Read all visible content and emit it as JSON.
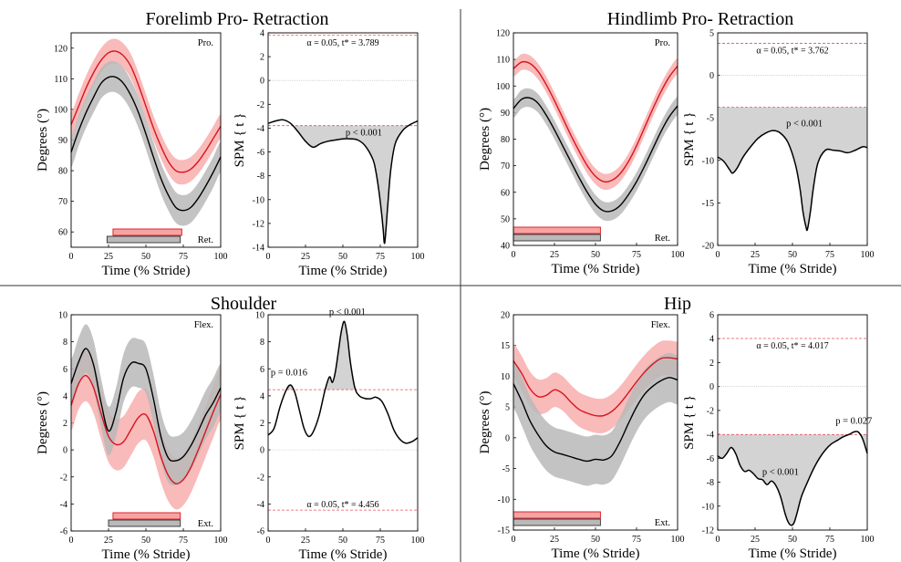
{
  "figure": {
    "panels": [
      "forelimb",
      "hindlimb",
      "shoulder",
      "hip"
    ]
  },
  "chart_data": [
    {
      "id": "forelimb",
      "title": "Forelimb Pro- Retraction",
      "colors": {
        "red_mean": "#d9141d",
        "red_band": "#f7a3a3",
        "black_mean": "#000000",
        "grey_band": "#b9b9b9",
        "spm_fill": "#d3d3d3",
        "threshold": "#e8505a"
      },
      "left": {
        "type": "line",
        "xlabel": "Time (% Stride)",
        "ylabel": "Degrees (°)",
        "xlim": [
          0,
          100
        ],
        "ylim": [
          55,
          125
        ],
        "xticks": [
          0,
          25,
          50,
          75,
          100
        ],
        "yticks": [
          60,
          70,
          80,
          90,
          100,
          110,
          120
        ],
        "top_label": "Pro.",
        "bottom_label": "Ret.",
        "x": [
          0,
          5,
          10,
          15,
          20,
          25,
          30,
          35,
          40,
          45,
          50,
          55,
          60,
          65,
          70,
          75,
          80,
          85,
          90,
          95,
          100
        ],
        "series": [
          {
            "color": "red",
            "mean": [
              95,
              101,
              107,
              112,
              116,
              118.5,
              119,
              117.5,
              114,
              108,
              101,
              94,
              88,
              83,
              80,
              79.5,
              80.5,
              83,
              86.5,
              90.5,
              94.5
            ],
            "half_width": 4
          },
          {
            "color": "black",
            "mean": [
              86,
              93,
              99,
              104,
              108.5,
              110.5,
              110.5,
              108.5,
              104.5,
              99,
              92,
              84.5,
              77.5,
              72,
              68,
              67,
              68,
              71,
              75,
              79.5,
              84.5
            ],
            "half_width": 5
          }
        ],
        "bars": [
          {
            "color": "red",
            "start": 28,
            "end": 74
          },
          {
            "color": "grey",
            "start": 24,
            "end": 73
          }
        ]
      },
      "right": {
        "type": "line",
        "xlabel": "Time (% Stride)",
        "ylabel": "SPM { t }",
        "xlim": [
          0,
          100
        ],
        "ylim": [
          -14,
          4
        ],
        "xticks": [
          0,
          25,
          50,
          75,
          100
        ],
        "yticks": [
          -14,
          -12,
          -10,
          -8,
          -6,
          -4,
          -2,
          0,
          2,
          4
        ],
        "threshold_pos": 3.789,
        "threshold_neg": -3.789,
        "critical_text": "α = 0.05,     t* = 3.789",
        "critical_at": "top",
        "x": [
          0,
          5,
          10,
          15,
          20,
          25,
          30,
          35,
          40,
          45,
          50,
          55,
          60,
          65,
          70,
          72,
          74,
          76,
          77,
          78,
          80,
          82,
          85,
          90,
          95,
          100
        ],
        "t": [
          -3.6,
          -3.4,
          -3.3,
          -3.6,
          -4.3,
          -5.1,
          -5.6,
          -5.3,
          -5.1,
          -5.0,
          -4.9,
          -4.9,
          -5.0,
          -5.5,
          -6.6,
          -7.6,
          -9.2,
          -11.3,
          -12.6,
          -13.6,
          -10.5,
          -7.5,
          -5.3,
          -4.2,
          -3.7,
          -3.4
        ],
        "annotations": [
          {
            "text": "p < 0.001",
            "x": 64,
            "y": -4.6
          }
        ]
      }
    },
    {
      "id": "hindlimb",
      "title": "Hindlimb Pro- Retraction",
      "colors": {
        "red_mean": "#d9141d",
        "red_band": "#f7a3a3",
        "black_mean": "#000000",
        "grey_band": "#b9b9b9",
        "spm_fill": "#d3d3d3",
        "threshold": "#e8505a"
      },
      "left": {
        "type": "line",
        "xlabel": "Time (% Stride)",
        "ylabel": "Degrees (°)",
        "xlim": [
          0,
          100
        ],
        "ylim": [
          40,
          120
        ],
        "xticks": [
          0,
          25,
          50,
          75,
          100
        ],
        "yticks": [
          40,
          50,
          60,
          70,
          80,
          90,
          100,
          110,
          120
        ],
        "top_label": "Pro.",
        "bottom_label": "Ret.",
        "x": [
          0,
          5,
          10,
          15,
          20,
          25,
          30,
          35,
          40,
          45,
          50,
          55,
          60,
          65,
          70,
          75,
          80,
          85,
          90,
          95,
          100
        ],
        "series": [
          {
            "color": "red",
            "mean": [
              106.5,
              109,
              108.5,
              105.5,
              100.5,
              94.5,
              88,
              81.5,
              75.5,
              70,
              66,
              64,
              64.5,
              67,
              71.5,
              77.5,
              84.5,
              91.5,
              98,
              103.5,
              107.5
            ],
            "half_width": 3
          },
          {
            "color": "black",
            "mean": [
              91.5,
              95,
              95.5,
              93.5,
              89,
              83.5,
              77.5,
              71.5,
              65.5,
              60,
              55.5,
              53,
              53,
              55,
              59,
              64,
              70,
              76.5,
              83,
              88.5,
              92.5
            ],
            "half_width": 3.5
          }
        ],
        "bars": [
          {
            "color": "red",
            "start": 0,
            "end": 53
          },
          {
            "color": "grey",
            "start": 0,
            "end": 53
          }
        ]
      },
      "right": {
        "type": "line",
        "xlabel": "Time (% Stride)",
        "ylabel": "SPM { t }",
        "xlim": [
          0,
          100
        ],
        "ylim": [
          -20,
          5
        ],
        "xticks": [
          0,
          25,
          50,
          75,
          100
        ],
        "yticks": [
          -20,
          -15,
          -10,
          -5,
          0,
          5
        ],
        "threshold_pos": 3.762,
        "threshold_neg": -3.762,
        "critical_text": "α = 0.05,     t* = 3.762",
        "critical_at": "top",
        "x": [
          0,
          4,
          8,
          10,
          13,
          17,
          22,
          27,
          32,
          37,
          42,
          47,
          52,
          55,
          57,
          59,
          60,
          62,
          64,
          67,
          72,
          77,
          82,
          87,
          92,
          97,
          100
        ],
        "t": [
          -9.6,
          -10.1,
          -11.1,
          -11.5,
          -10.9,
          -9.6,
          -8.4,
          -7.4,
          -6.8,
          -6.5,
          -6.8,
          -7.9,
          -10.5,
          -13.3,
          -16.0,
          -17.8,
          -18.1,
          -16.0,
          -13.2,
          -10.3,
          -8.8,
          -8.8,
          -8.9,
          -9.1,
          -8.8,
          -8.4,
          -8.5
        ],
        "annotations": [
          {
            "text": "p < 0.001",
            "x": 58,
            "y": -6.0
          }
        ]
      }
    },
    {
      "id": "shoulder",
      "title": "Shoulder",
      "colors": {
        "red_mean": "#d9141d",
        "red_band": "#f7a3a3",
        "black_mean": "#000000",
        "grey_band": "#b9b9b9",
        "spm_fill": "#d3d3d3",
        "threshold": "#e8505a"
      },
      "left": {
        "type": "line",
        "xlabel": "Time (% Stride)",
        "ylabel": "Degrees (°)",
        "xlim": [
          0,
          100
        ],
        "ylim": [
          -6,
          10
        ],
        "xticks": [
          0,
          25,
          50,
          75,
          100
        ],
        "yticks": [
          -6,
          -4,
          -2,
          0,
          2,
          4,
          6,
          8,
          10
        ],
        "top_label": "Flex.",
        "bottom_label": "Ext.",
        "x": [
          0,
          5,
          10,
          15,
          20,
          25,
          30,
          35,
          40,
          45,
          50,
          55,
          60,
          65,
          70,
          75,
          80,
          85,
          90,
          95,
          100
        ],
        "series": [
          {
            "color": "red",
            "mean": [
              3.3,
              4.9,
              5.5,
              4.6,
              2.7,
              1.0,
              0.4,
              0.6,
              1.5,
              2.4,
              2.6,
              1.4,
              -0.5,
              -1.9,
              -2.5,
              -2.2,
              -1.3,
              0.0,
              1.4,
              2.8,
              4.1
            ],
            "half_width": 1.9
          },
          {
            "color": "black",
            "mean": [
              4.9,
              6.5,
              7.5,
              6.3,
              3.5,
              1.4,
              2.8,
              5.3,
              6.4,
              6.4,
              6.0,
              3.8,
              1.0,
              -0.6,
              -0.8,
              -0.5,
              0.3,
              1.4,
              2.6,
              3.5,
              4.6
            ],
            "half_width": 1.8
          }
        ],
        "bars": [
          {
            "color": "red",
            "start": 28,
            "end": 73
          },
          {
            "color": "grey",
            "start": 25,
            "end": 73
          }
        ]
      },
      "right": {
        "type": "line",
        "xlabel": "Time (% Stride)",
        "ylabel": "SPM { t }",
        "xlim": [
          0,
          100
        ],
        "ylim": [
          -6,
          10
        ],
        "xticks": [
          0,
          25,
          50,
          75,
          100
        ],
        "yticks": [
          -6,
          -4,
          -2,
          0,
          2,
          4,
          6,
          8,
          10
        ],
        "threshold_pos": 4.456,
        "threshold_neg": -4.456,
        "critical_text": "α = 0.05,     t* = 4.456",
        "critical_at": "bottom",
        "x": [
          0,
          4,
          8,
          12,
          15,
          18,
          21,
          24,
          27,
          30,
          34,
          38,
          41,
          43,
          45,
          47,
          49,
          51,
          53,
          55,
          58,
          61,
          65,
          69,
          72,
          76,
          80,
          84,
          88,
          92,
          96,
          100
        ],
        "t": [
          1.1,
          1.6,
          3.2,
          4.4,
          4.8,
          4.2,
          2.9,
          1.6,
          1.0,
          1.3,
          2.5,
          4.4,
          5.4,
          5.0,
          5.8,
          7.3,
          8.8,
          9.5,
          8.4,
          6.5,
          4.6,
          4.0,
          3.8,
          3.8,
          3.9,
          3.6,
          2.7,
          1.5,
          0.8,
          0.5,
          0.6,
          0.9
        ],
        "annotations": [
          {
            "text": "p = 0.016",
            "x": 14,
            "y": 5.5
          },
          {
            "text": "p < 0.001",
            "x": 53,
            "y": 10.0
          }
        ]
      }
    },
    {
      "id": "hip",
      "title": "Hip",
      "colors": {
        "red_mean": "#d9141d",
        "red_band": "#f7a3a3",
        "black_mean": "#000000",
        "grey_band": "#b9b9b9",
        "spm_fill": "#d3d3d3",
        "threshold": "#e8505a"
      },
      "left": {
        "type": "line",
        "xlabel": "Time (% Stride)",
        "ylabel": "Degrees (°)",
        "xlim": [
          0,
          100
        ],
        "ylim": [
          -15,
          20
        ],
        "xticks": [
          0,
          25,
          50,
          75,
          100
        ],
        "yticks": [
          -15,
          -10,
          -5,
          0,
          5,
          10,
          15,
          20
        ],
        "top_label": "Flex.",
        "bottom_label": "Ext.",
        "x": [
          0,
          5,
          10,
          15,
          20,
          25,
          30,
          35,
          40,
          45,
          50,
          55,
          60,
          65,
          70,
          75,
          80,
          85,
          90,
          95,
          100
        ],
        "series": [
          {
            "color": "red",
            "mean": [
              12.5,
              10.5,
              8.0,
              6.7,
              6.9,
              7.8,
              7.2,
              5.8,
              4.6,
              4.0,
              3.6,
              3.6,
              4.3,
              5.6,
              7.3,
              9.1,
              10.7,
              12.0,
              12.9,
              13.0,
              12.8
            ],
            "half_width": 2.8
          },
          {
            "color": "black",
            "mean": [
              8.8,
              6.0,
              2.8,
              0.5,
              -1.3,
              -2.3,
              -2.7,
              -3.1,
              -3.5,
              -3.8,
              -3.5,
              -3.6,
              -2.9,
              -0.6,
              2.3,
              5.0,
              7.1,
              8.4,
              9.3,
              9.8,
              9.4
            ],
            "half_width": 4
          }
        ],
        "bars": [
          {
            "color": "red",
            "start": 0,
            "end": 53
          },
          {
            "color": "grey",
            "start": 0,
            "end": 53
          }
        ]
      },
      "right": {
        "type": "line",
        "xlabel": "Time (% Stride)",
        "ylabel": "SPM { t }",
        "xlim": [
          0,
          100
        ],
        "ylim": [
          -12,
          6
        ],
        "xticks": [
          0,
          25,
          50,
          75,
          100
        ],
        "yticks": [
          -12,
          -10,
          -8,
          -6,
          -4,
          -2,
          0,
          2,
          4,
          6
        ],
        "threshold_pos": 4.017,
        "threshold_neg": -4.017,
        "critical_text": "α = 0.05,     t* = 4.017",
        "critical_at": "top",
        "x": [
          0,
          3,
          6,
          9,
          12,
          15,
          18,
          21,
          24,
          27,
          30,
          33,
          36,
          39,
          42,
          45,
          47,
          49,
          51,
          53,
          56,
          60,
          64,
          68,
          72,
          76,
          80,
          84,
          88,
          91,
          94,
          97,
          100
        ],
        "t": [
          -5.8,
          -6.0,
          -5.6,
          -5.1,
          -5.6,
          -6.6,
          -7.1,
          -7.0,
          -7.3,
          -7.7,
          -7.8,
          -8.2,
          -7.9,
          -8.3,
          -9.2,
          -10.6,
          -11.3,
          -11.6,
          -11.4,
          -10.6,
          -9.2,
          -8.0,
          -6.9,
          -6.0,
          -5.3,
          -4.8,
          -4.5,
          -4.2,
          -4.0,
          -3.8,
          -3.8,
          -4.4,
          -5.6
        ],
        "annotations": [
          {
            "text": "p < 0.001",
            "x": 42,
            "y": -7.4
          },
          {
            "text": "p = 0.027",
            "x": 91,
            "y": -3.1
          }
        ]
      }
    }
  ]
}
